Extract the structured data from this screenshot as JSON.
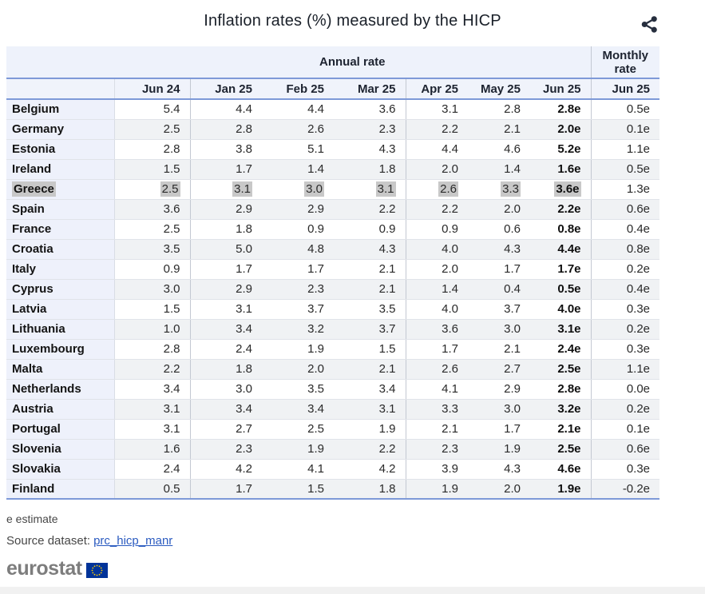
{
  "title": "Inflation rates (%) measured by the HICP",
  "table": {
    "group_headers": {
      "annual": "Annual rate",
      "monthly": "Monthly rate"
    },
    "columns": [
      "Jun 24",
      "Jan 25",
      "Feb 25",
      "Mar 25",
      "Apr 25",
      "May 25",
      "Jun 25"
    ],
    "monthly_column": "Jun 25",
    "rows": [
      {
        "country": "Belgium",
        "values": [
          "5.4",
          "4.4",
          "4.4",
          "3.6",
          "3.1",
          "2.8",
          "2.8e"
        ],
        "monthly": "0.5e",
        "highlighted": false
      },
      {
        "country": "Germany",
        "values": [
          "2.5",
          "2.8",
          "2.6",
          "2.3",
          "2.2",
          "2.1",
          "2.0e"
        ],
        "monthly": "0.1e",
        "highlighted": false
      },
      {
        "country": "Estonia",
        "values": [
          "2.8",
          "3.8",
          "5.1",
          "4.3",
          "4.4",
          "4.6",
          "5.2e"
        ],
        "monthly": "1.1e",
        "highlighted": false
      },
      {
        "country": "Ireland",
        "values": [
          "1.5",
          "1.7",
          "1.4",
          "1.8",
          "2.0",
          "1.4",
          "1.6e"
        ],
        "monthly": "0.5e",
        "highlighted": false
      },
      {
        "country": "Greece",
        "values": [
          "2.5",
          "3.1",
          "3.0",
          "3.1",
          "2.6",
          "3.3",
          "3.6e"
        ],
        "monthly": "1.3e",
        "highlighted": true
      },
      {
        "country": "Spain",
        "values": [
          "3.6",
          "2.9",
          "2.9",
          "2.2",
          "2.2",
          "2.0",
          "2.2e"
        ],
        "monthly": "0.6e",
        "highlighted": false
      },
      {
        "country": "France",
        "values": [
          "2.5",
          "1.8",
          "0.9",
          "0.9",
          "0.9",
          "0.6",
          "0.8e"
        ],
        "monthly": "0.4e",
        "highlighted": false
      },
      {
        "country": "Croatia",
        "values": [
          "3.5",
          "5.0",
          "4.8",
          "4.3",
          "4.0",
          "4.3",
          "4.4e"
        ],
        "monthly": "0.8e",
        "highlighted": false
      },
      {
        "country": "Italy",
        "values": [
          "0.9",
          "1.7",
          "1.7",
          "2.1",
          "2.0",
          "1.7",
          "1.7e"
        ],
        "monthly": "0.2e",
        "highlighted": false
      },
      {
        "country": "Cyprus",
        "values": [
          "3.0",
          "2.9",
          "2.3",
          "2.1",
          "1.4",
          "0.4",
          "0.5e"
        ],
        "monthly": "0.4e",
        "highlighted": false
      },
      {
        "country": "Latvia",
        "values": [
          "1.5",
          "3.1",
          "3.7",
          "3.5",
          "4.0",
          "3.7",
          "4.0e"
        ],
        "monthly": "0.3e",
        "highlighted": false
      },
      {
        "country": "Lithuania",
        "values": [
          "1.0",
          "3.4",
          "3.2",
          "3.7",
          "3.6",
          "3.0",
          "3.1e"
        ],
        "monthly": "0.2e",
        "highlighted": false
      },
      {
        "country": "Luxembourg",
        "values": [
          "2.8",
          "2.4",
          "1.9",
          "1.5",
          "1.7",
          "2.1",
          "2.4e"
        ],
        "monthly": "0.3e",
        "highlighted": false
      },
      {
        "country": "Malta",
        "values": [
          "2.2",
          "1.8",
          "2.0",
          "2.1",
          "2.6",
          "2.7",
          "2.5e"
        ],
        "monthly": "1.1e",
        "highlighted": false
      },
      {
        "country": "Netherlands",
        "values": [
          "3.4",
          "3.0",
          "3.5",
          "3.4",
          "4.1",
          "2.9",
          "2.8e"
        ],
        "monthly": "0.0e",
        "highlighted": false
      },
      {
        "country": "Austria",
        "values": [
          "3.1",
          "3.4",
          "3.4",
          "3.1",
          "3.3",
          "3.0",
          "3.2e"
        ],
        "monthly": "0.2e",
        "highlighted": false
      },
      {
        "country": "Portugal",
        "values": [
          "3.1",
          "2.7",
          "2.5",
          "1.9",
          "2.1",
          "1.7",
          "2.1e"
        ],
        "monthly": "0.1e",
        "highlighted": false
      },
      {
        "country": "Slovenia",
        "values": [
          "1.6",
          "2.3",
          "1.9",
          "2.2",
          "2.3",
          "1.9",
          "2.5e"
        ],
        "monthly": "0.6e",
        "highlighted": false
      },
      {
        "country": "Slovakia",
        "values": [
          "2.4",
          "4.2",
          "4.1",
          "4.2",
          "3.9",
          "4.3",
          "4.6e"
        ],
        "monthly": "0.3e",
        "highlighted": false
      },
      {
        "country": "Finland",
        "values": [
          "0.5",
          "1.7",
          "1.5",
          "1.8",
          "1.9",
          "2.0",
          "1.9e"
        ],
        "monthly": "-0.2e",
        "highlighted": false
      }
    ]
  },
  "footnote": "e estimate",
  "source": {
    "label": "Source dataset:",
    "link": "prc_hicp_manr"
  },
  "logo": {
    "text": "eurostat"
  },
  "icons": {
    "share": "share-icon",
    "eu_flag": "eu-flag-icon"
  },
  "colors": {
    "rule_blue": "#7e99d8",
    "header_bg": "#eef2fb",
    "name_col_bg": "#eef1fb",
    "even_row_bg": "#f0f2f4",
    "selection_gray": "#c8c8c8",
    "link_blue": "#2b5bc0",
    "flag_blue": "#003399",
    "flag_star_yellow": "#ffcc00",
    "share_icon": "#262e3e",
    "logo_gray": "#7d7d7d"
  }
}
